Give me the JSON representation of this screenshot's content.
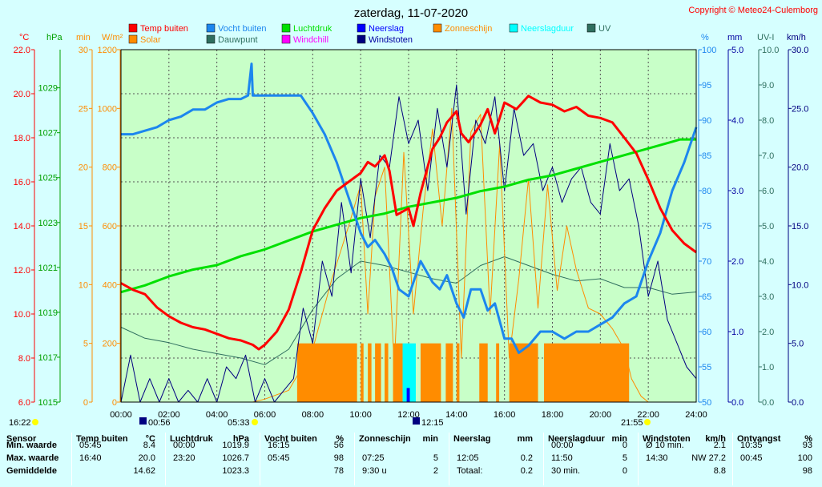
{
  "header": {
    "title": "zaterdag, 11-07-2020",
    "copyright": "Copyright © Meteo24-Culemborg"
  },
  "legend": [
    {
      "label": "Temp buiten",
      "color": "#ff0000"
    },
    {
      "label": "Vocht buiten",
      "color": "#1c86ee"
    },
    {
      "label": "Luchtdruk",
      "color": "#00e000"
    },
    {
      "label": "Neerslag",
      "color": "#0000ff"
    },
    {
      "label": "Zonneschijn",
      "color": "#ff8c00"
    },
    {
      "label": "Neerslagduur",
      "color": "#00ffff"
    },
    {
      "label": "UV",
      "color": "#2f6f5f"
    },
    {
      "label": "Solar",
      "color": "#ff8c00"
    },
    {
      "label": "Dauwpunt",
      "color": "#2f6f5f"
    },
    {
      "label": "Windchill",
      "color": "#ff00ff"
    },
    {
      "label": "Windstoten",
      "color": "#000080"
    }
  ],
  "sun": {
    "sunrise": "05:33",
    "sunset": "21:55",
    "day_length": "16:22",
    "moonrise": "00:56",
    "moonset": "12:15"
  },
  "chart_data": {
    "type": "line",
    "title": "zaterdag, 11-07-2020",
    "x_ticks": [
      "00:00",
      "02:00",
      "04:00",
      "06:00",
      "08:00",
      "10:00",
      "12:00",
      "14:00",
      "16:00",
      "18:00",
      "20:00",
      "22:00",
      "24:00"
    ],
    "axes": {
      "temp": {
        "unit": "°C",
        "min": 6,
        "max": 22,
        "ticks": [
          "22.0",
          "20.0",
          "18.0",
          "16.0",
          "14.0",
          "12.0",
          "10.0",
          "8.0",
          "6.0"
        ]
      },
      "pressure": {
        "unit": "hPa",
        "min": 1015,
        "max": 1030.7,
        "ticks": [
          "1029",
          "1027",
          "1025",
          "1023",
          "1021",
          "1019",
          "1017",
          "1015"
        ]
      },
      "minutes": {
        "unit": "min",
        "min": 0,
        "max": 30,
        "ticks": [
          "30",
          "25",
          "20",
          "15",
          "10",
          "5",
          "0"
        ]
      },
      "solar": {
        "unit": "W/m²",
        "min": 0,
        "max": 1200,
        "ticks": [
          "1200",
          "1000",
          "800",
          "600",
          "400",
          "200",
          "0"
        ]
      },
      "humidity": {
        "unit": "%",
        "min": 50,
        "max": 100,
        "ticks": [
          "100",
          "95",
          "90",
          "85",
          "80",
          "75",
          "70",
          "65",
          "60",
          "55",
          "50"
        ]
      },
      "rain": {
        "unit": "mm",
        "min": 0,
        "max": 5,
        "ticks": [
          "5.0",
          "4.0",
          "3.0",
          "2.0",
          "1.0",
          "0.0"
        ]
      },
      "uv": {
        "unit": "UV-I",
        "min": 0,
        "max": 10,
        "ticks": [
          "10.0",
          "9.0",
          "8.0",
          "7.0",
          "6.0",
          "5.0",
          "4.0",
          "3.0",
          "2.0",
          "1.0",
          "0.0"
        ]
      },
      "wind": {
        "unit": "km/h",
        "min": 0,
        "max": 30,
        "ticks": [
          "30.0",
          "25.0",
          "20.0",
          "15.0",
          "10.0",
          "5.0",
          "0.0"
        ]
      }
    },
    "series": [
      {
        "name": "Temp buiten",
        "axis": "temp",
        "color": "#ff0000",
        "x": [
          0,
          0.5,
          1,
          1.5,
          2,
          2.5,
          3,
          3.5,
          4,
          4.5,
          5,
          5.5,
          5.75,
          6,
          6.5,
          7,
          7.5,
          8,
          8.5,
          9,
          9.5,
          10,
          10.3,
          10.6,
          11,
          11.2,
          11.5,
          12,
          12.2,
          12.5,
          13,
          13.3,
          13.6,
          14,
          14.2,
          14.5,
          15,
          15.3,
          15.6,
          16,
          16.5,
          17,
          17.5,
          18,
          18.5,
          19,
          19.5,
          20,
          20.5,
          21,
          21.5,
          22,
          22.5,
          23,
          23.5,
          24
        ],
        "values": [
          11.4,
          11.1,
          10.9,
          10.3,
          9.9,
          9.6,
          9.4,
          9.3,
          9.1,
          8.9,
          8.8,
          8.6,
          8.4,
          8.6,
          9.2,
          10.2,
          11.9,
          13.8,
          14.8,
          15.6,
          16.0,
          16.4,
          16.9,
          16.7,
          17.2,
          16.5,
          14.5,
          14.8,
          14.0,
          15.5,
          17.5,
          18.0,
          18.7,
          19.2,
          18.2,
          17.8,
          18.6,
          19.3,
          18.2,
          19.6,
          19.3,
          19.9,
          19.6,
          19.5,
          19.2,
          19.4,
          19.0,
          18.9,
          18.7,
          18.0,
          17.3,
          16.1,
          14.8,
          13.8,
          13.2,
          12.8
        ]
      },
      {
        "name": "Vocht buiten",
        "axis": "humidity",
        "color": "#1c86ee",
        "x": [
          0,
          0.5,
          1,
          1.5,
          2,
          2.5,
          3,
          3.5,
          4,
          4.5,
          5,
          5.3,
          5.45,
          5.5,
          6,
          6.5,
          7,
          7.5,
          8,
          8.5,
          9,
          9.5,
          10,
          10.3,
          10.6,
          11,
          11.3,
          11.6,
          12,
          12.5,
          13,
          13.3,
          13.6,
          14,
          14.3,
          14.6,
          15,
          15.3,
          15.6,
          16,
          16.3,
          16.6,
          17,
          17.5,
          18,
          18.5,
          19,
          19.5,
          20,
          20.5,
          21,
          21.5,
          22,
          22.5,
          23,
          23.5,
          24
        ],
        "values": [
          88,
          88,
          88.5,
          89,
          90,
          90.5,
          91.5,
          91.5,
          92.5,
          93,
          93,
          93.5,
          98,
          93.5,
          93.5,
          93.5,
          93.5,
          93.5,
          91,
          88,
          84,
          79,
          74,
          72,
          73,
          71,
          69,
          66,
          65,
          70,
          67,
          66,
          68,
          64,
          62,
          66,
          66,
          63,
          64,
          59,
          59,
          57,
          58,
          60,
          60,
          59,
          60,
          60,
          61,
          62,
          64,
          65,
          70,
          74,
          80,
          84,
          89
        ]
      },
      {
        "name": "Luchtdruk",
        "axis": "pressure",
        "color": "#00e000",
        "x": [
          0,
          1,
          2,
          3,
          4,
          5,
          6,
          7,
          8,
          9,
          10,
          11,
          12,
          13,
          14,
          15,
          16,
          17,
          18,
          19,
          20,
          21,
          22,
          23,
          23.33,
          24
        ],
        "values": [
          1019.9,
          1020.2,
          1020.6,
          1020.9,
          1021.1,
          1021.5,
          1021.8,
          1022.2,
          1022.6,
          1022.9,
          1023.2,
          1023.4,
          1023.7,
          1023.9,
          1024.1,
          1024.4,
          1024.6,
          1024.9,
          1025.1,
          1025.4,
          1025.7,
          1026.0,
          1026.3,
          1026.6,
          1026.7,
          1026.7
        ]
      },
      {
        "name": "Dauwpunt",
        "axis": "temp",
        "color": "#2f6f5f",
        "x": [
          0,
          1,
          2,
          3,
          4,
          5,
          6,
          7,
          8,
          9,
          10,
          11,
          12,
          13,
          14,
          15,
          16,
          17,
          18,
          19,
          20,
          21,
          22,
          23,
          24
        ],
        "values": [
          9.4,
          8.9,
          8.7,
          8.4,
          8.2,
          8.0,
          7.7,
          8.4,
          10.2,
          11.6,
          12.4,
          12.2,
          11.9,
          11.6,
          11.4,
          12.2,
          12.6,
          12.2,
          11.8,
          11.5,
          11.6,
          11.2,
          11.2,
          10.9,
          11.0
        ]
      },
      {
        "name": "Solar",
        "axis": "solar",
        "color": "#ff8c00",
        "x": [
          0,
          5.5,
          6,
          7,
          8,
          8.8,
          9.5,
          10,
          10.3,
          10.6,
          11,
          11.4,
          11.8,
          12.2,
          12.6,
          13,
          13.4,
          13.8,
          14.2,
          14.6,
          15,
          15.4,
          15.8,
          16.2,
          16.6,
          17,
          17.4,
          17.8,
          18.2,
          18.6,
          19,
          19.5,
          20,
          20.5,
          21,
          21.3,
          21.7,
          22,
          24
        ],
        "values": [
          0,
          0,
          10,
          40,
          180,
          420,
          600,
          740,
          300,
          700,
          800,
          120,
          850,
          300,
          650,
          930,
          600,
          1000,
          150,
          920,
          980,
          300,
          880,
          150,
          420,
          760,
          320,
          740,
          380,
          600,
          450,
          320,
          300,
          250,
          180,
          80,
          20,
          0,
          0
        ]
      },
      {
        "name": "Windstoten",
        "axis": "wind",
        "color": "#000080",
        "x": [
          0,
          0.4,
          0.8,
          1.2,
          1.6,
          2,
          2.4,
          2.8,
          3.2,
          3.6,
          4,
          4.4,
          4.8,
          5.2,
          5.6,
          6,
          6.4,
          6.8,
          7.2,
          7.6,
          8,
          8.4,
          8.8,
          9.2,
          9.6,
          10,
          10.4,
          10.8,
          11.2,
          11.6,
          12,
          12.4,
          12.8,
          13.2,
          13.6,
          14,
          14.4,
          14.8,
          15.2,
          15.6,
          16,
          16.4,
          16.8,
          17.2,
          17.6,
          18,
          18.4,
          18.8,
          19.2,
          19.6,
          20,
          20.4,
          20.8,
          21.2,
          21.6,
          22,
          22.4,
          22.8,
          23.2,
          23.6,
          24
        ],
        "values": [
          0,
          4,
          0,
          2,
          0,
          2,
          0,
          1,
          0,
          2,
          0,
          3,
          2,
          4,
          0,
          2,
          0,
          1,
          2,
          8,
          5,
          12,
          9,
          17,
          11,
          19,
          14,
          21,
          20,
          26,
          22,
          24,
          18,
          25,
          20,
          27,
          16,
          24,
          22,
          26,
          18,
          25,
          21,
          22,
          18,
          20,
          17,
          19,
          20,
          17,
          16,
          22,
          18,
          19,
          15,
          9,
          12,
          7,
          5,
          3,
          2
        ]
      }
    ],
    "bars": [
      {
        "name": "Zonneschijn",
        "axis": "minutes",
        "color": "#ff8c00",
        "spans": [
          [
            7.35,
            9.85
          ],
          [
            10.0,
            10.12
          ],
          [
            10.3,
            10.45
          ],
          [
            10.6,
            10.85
          ],
          [
            11.0,
            11.15
          ],
          [
            11.35,
            11.75
          ],
          [
            12.5,
            13.35
          ],
          [
            13.55,
            13.85
          ],
          [
            14.0,
            14.12
          ],
          [
            14.95,
            15.3
          ],
          [
            15.65,
            15.78
          ],
          [
            16.2,
            17.4
          ],
          [
            17.65,
            21.2
          ]
        ],
        "value": 5
      },
      {
        "name": "Neerslagduur",
        "axis": "minutes",
        "color": "#00ffff",
        "spans": [
          [
            11.75,
            12.3
          ]
        ],
        "value": 5
      },
      {
        "name": "Neerslag",
        "axis": "rain",
        "color": "#0000ff",
        "spans": [
          [
            11.92,
            12.05
          ]
        ],
        "value": 0.2
      }
    ]
  },
  "stats": {
    "columns": [
      {
        "title": "Sensor",
        "unit": "",
        "rows": [
          "Min. waarde",
          "Max. waarde",
          "Gemiddelde"
        ]
      },
      {
        "title": "Temp buiten",
        "unit": "°C",
        "rows": [
          [
            "05:45",
            "8.4"
          ],
          [
            "16:40",
            "20.0"
          ],
          [
            "",
            "14.62"
          ]
        ]
      },
      {
        "title": "Luchtdruk",
        "unit": "hPa",
        "rows": [
          [
            "00:00",
            "1019.9"
          ],
          [
            "23:20",
            "1026.7"
          ],
          [
            "",
            "1023.3"
          ]
        ]
      },
      {
        "title": "Vocht buiten",
        "unit": "%",
        "rows": [
          [
            "16:15",
            "56"
          ],
          [
            "05:45",
            "98"
          ],
          [
            "",
            "78"
          ]
        ]
      },
      {
        "title": "Zonneschijn",
        "unit": "min",
        "rows": [
          [
            "",
            ""
          ],
          [
            "07:25",
            "5"
          ],
          [
            "9:30 u",
            "2"
          ]
        ]
      },
      {
        "title": "Neerslag",
        "unit": "mm",
        "rows": [
          [
            "",
            ""
          ],
          [
            "12:05",
            "0.2"
          ],
          [
            "Totaal:",
            "0.2"
          ]
        ]
      },
      {
        "title": "Neerslagduur",
        "unit": "min",
        "rows": [
          [
            "00:00",
            "0"
          ],
          [
            "11:50",
            "5"
          ],
          [
            "30 min.",
            "0"
          ]
        ]
      },
      {
        "title": "Windstoten",
        "unit": "km/h",
        "rows": [
          [
            "Ø 10 min.",
            "2.1"
          ],
          [
            "14:30",
            "NW 27.2"
          ],
          [
            "",
            "8.8"
          ]
        ]
      },
      {
        "title": "Ontvangst",
        "unit": "%",
        "rows": [
          [
            "10:35",
            "93"
          ],
          [
            "00:45",
            "100"
          ],
          [
            "",
            "98"
          ]
        ]
      }
    ]
  }
}
